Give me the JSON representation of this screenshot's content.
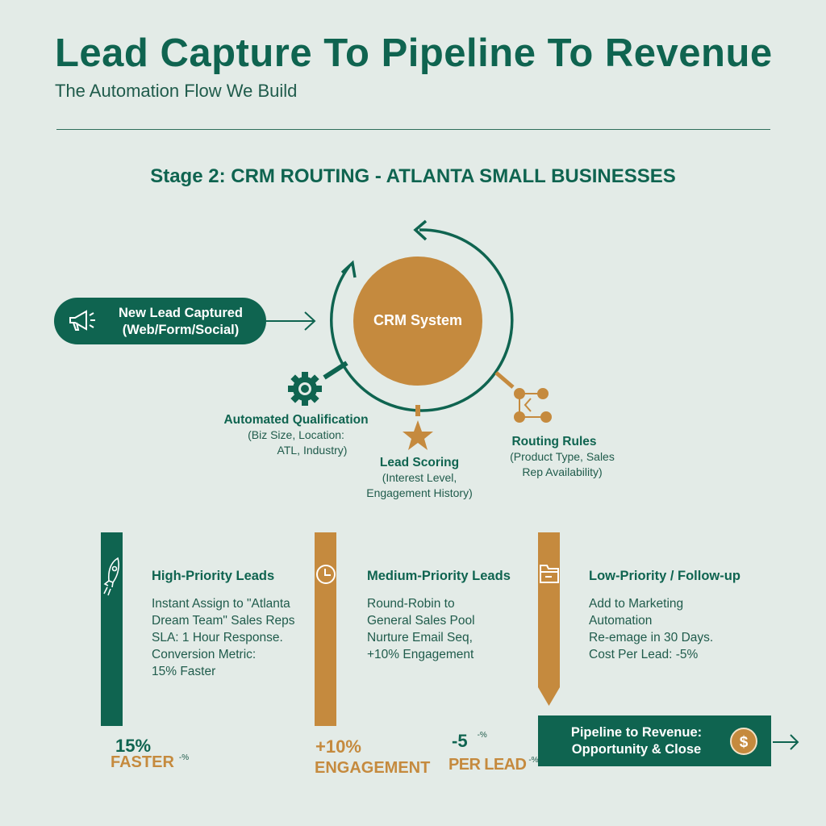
{
  "header": {
    "title": "Lead Capture To Pipeline To Revenue",
    "subtitle": "The Automation Flow We Build"
  },
  "stage_title": "Stage 2: CRM ROUTING - ATLANTA SMALL BUSINESSES",
  "input": {
    "line1": "New Lead Captured",
    "line2": "(Web/Form/Social)",
    "icon": "megaphone-icon"
  },
  "hub": {
    "label": "CRM System"
  },
  "steps": [
    {
      "title": "Automated Qualification",
      "line1": "(Biz Size, Location:",
      "line2": "ATL, Industry)",
      "icon": "gear-icon"
    },
    {
      "title": "Lead Scoring",
      "line1": "(Interest Level,",
      "line2": "Engagement History)",
      "icon": "star-icon"
    },
    {
      "title": "Routing Rules",
      "line1": "(Product Type, Sales",
      "line2": "Rep Availability)",
      "icon": "network-icon"
    }
  ],
  "tiers": [
    {
      "title": "High-Priority Leads",
      "lines": [
        "Instant Assign to \"Atlanta",
        "Dream Team\" Sales Reps",
        "SLA: 1 Hour Response.",
        "Conversion Metric:",
        "15% Faster"
      ],
      "stat": "15%",
      "caption": "FASTER",
      "sup": "-%",
      "icon": "rocket-icon",
      "color": "#0f6450"
    },
    {
      "title": "Medium-Priority Leads",
      "lines": [
        "Round-Robin to",
        "General Sales Pool",
        "Nurture Email Seq,",
        "+10% Engagement"
      ],
      "stat": "+10%",
      "caption": "ENGAGEMENT",
      "icon": "clock-icon",
      "color": "#c58a3e"
    },
    {
      "title": "Low-Priority / Follow-up",
      "lines": [
        "Add to Marketing",
        "Automation",
        "Re-emage in 30 Days.",
        "Cost Per Lead: -5%"
      ],
      "stat": "-5",
      "stat_sup": "-%",
      "caption": "PER LEAD",
      "sup": "-%",
      "icon": "folder-icon",
      "color": "#c58a3e"
    }
  ],
  "output": {
    "line1": "Pipeline to Revenue:",
    "line2": "Opportunity & Close",
    "icon": "dollar-icon"
  },
  "colors": {
    "green": "#0f6450",
    "orange": "#c58a3e",
    "background": "#e3ebe7"
  }
}
